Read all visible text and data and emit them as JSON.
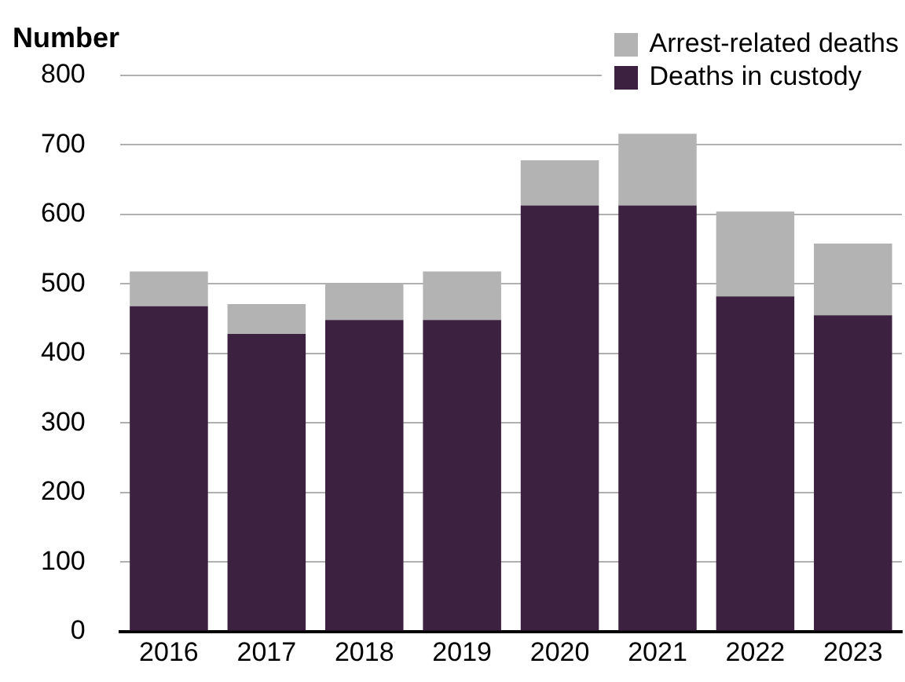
{
  "chart_data": {
    "type": "bar",
    "stacked": true,
    "ylabel": "Number",
    "categories": [
      "2016",
      "2017",
      "2018",
      "2019",
      "2020",
      "2021",
      "2022",
      "2023"
    ],
    "series": [
      {
        "name": "Deaths in custody",
        "color": "#3d2140",
        "values": [
          468,
          428,
          448,
          448,
          613,
          613,
          482,
          455
        ]
      },
      {
        "name": "Arrest-related deaths",
        "color": "#b3b3b3",
        "values": [
          50,
          43,
          52,
          70,
          65,
          103,
          122,
          103
        ]
      }
    ],
    "ylim": [
      0,
      800
    ],
    "yticks": [
      0,
      100,
      200,
      300,
      400,
      500,
      600,
      700,
      800
    ],
    "grid": "y",
    "legend": "top right"
  }
}
